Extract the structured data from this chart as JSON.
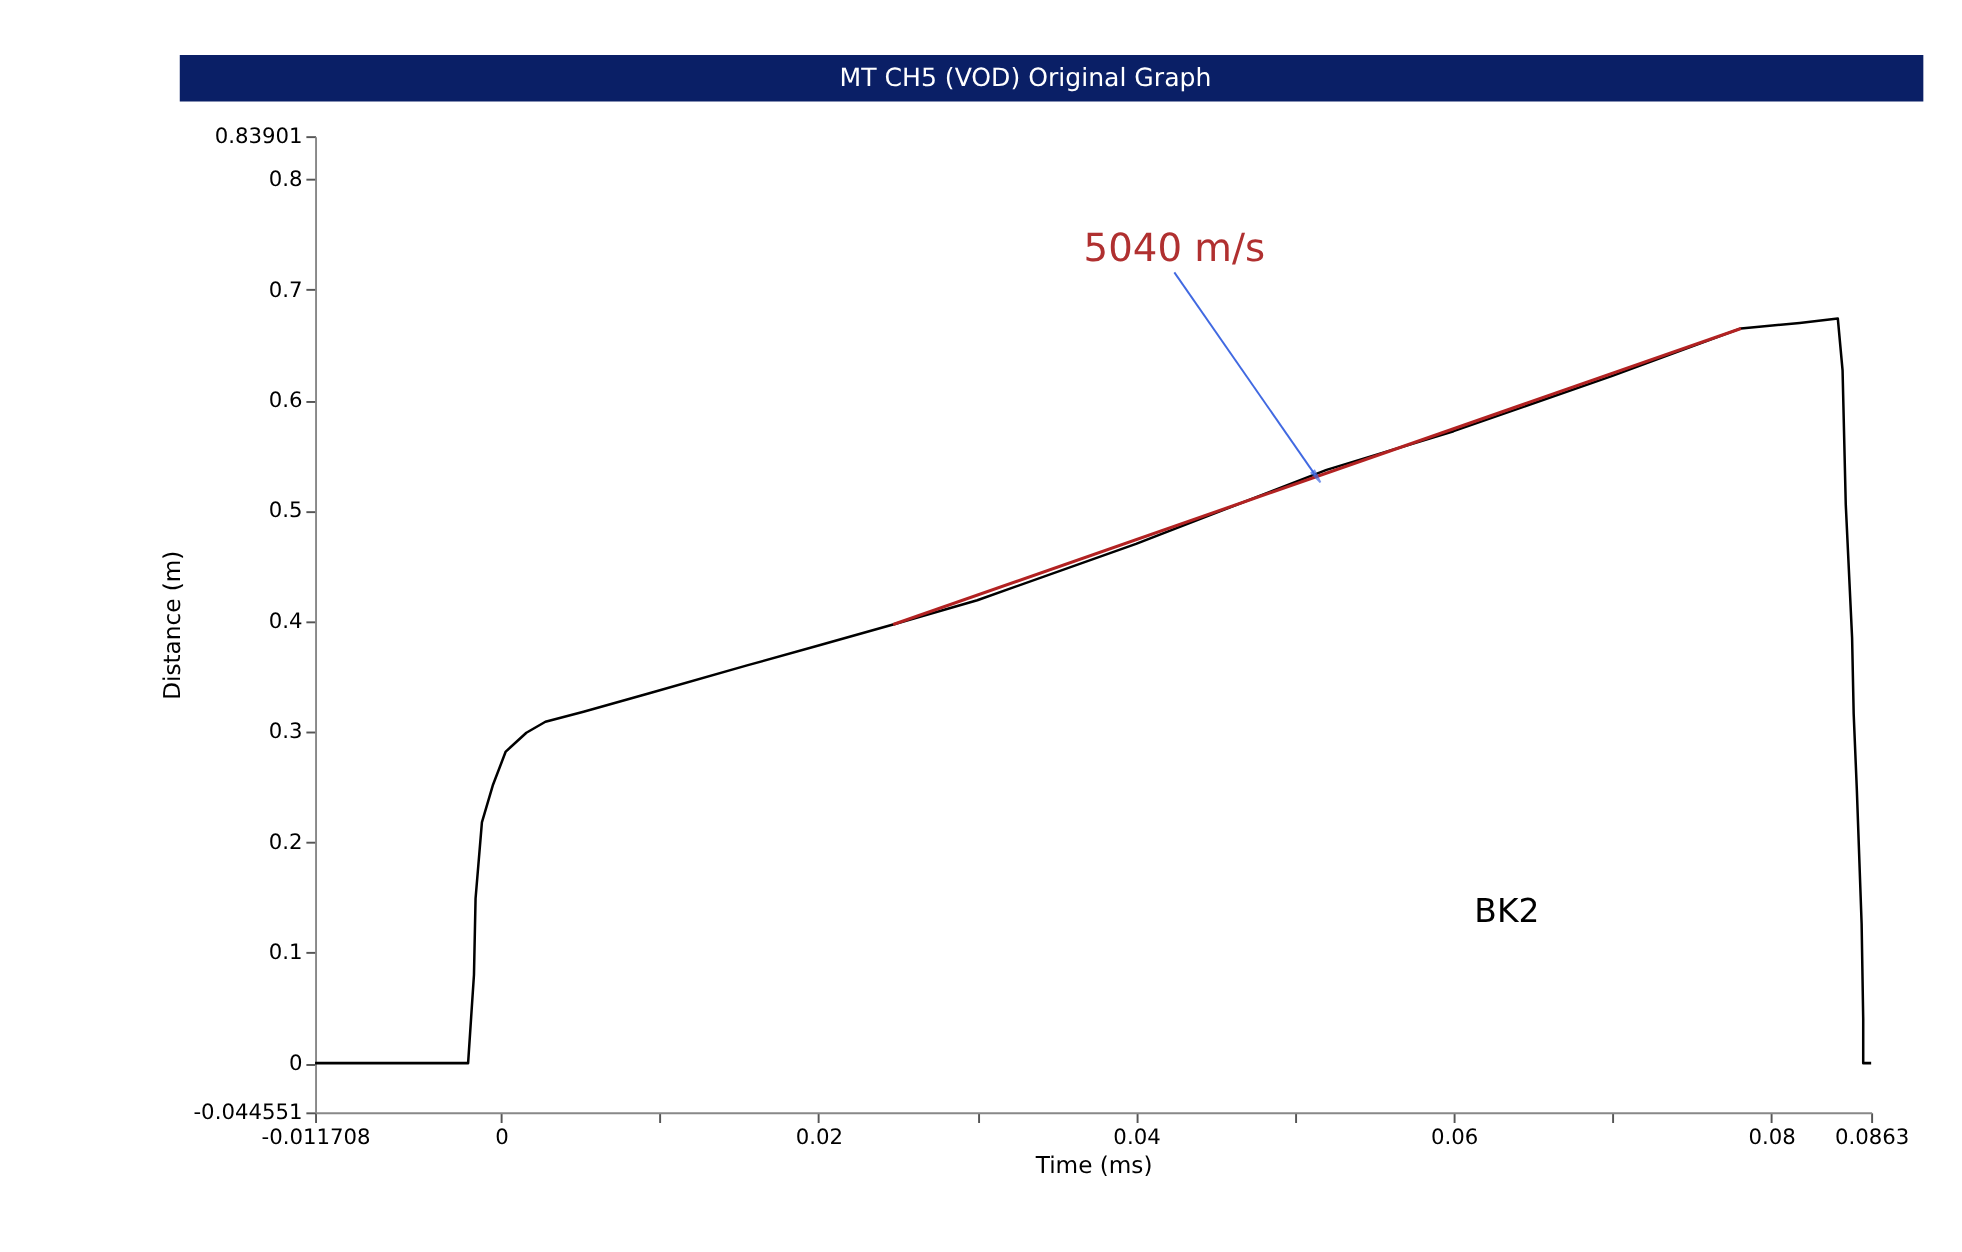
{
  "chart_data": {
    "type": "line",
    "title": "MT CH5 (VOD) Original Graph",
    "xlabel": "Time (ms)",
    "ylabel": "Distance (m)",
    "series": [
      {
        "color": "#000000",
        "x": [
          -0.011708,
          -0.00207,
          -0.0017,
          -0.0016,
          -0.0012,
          -0.0005,
          0.0003,
          0.0016,
          0.0028,
          0.0052,
          0.0094,
          0.0155,
          0.02,
          0.0247,
          0.03,
          0.04,
          0.052,
          0.06,
          0.07,
          0.0781,
          0.0818,
          0.0842,
          0.0845,
          0.0847,
          0.0851,
          0.0852,
          0.0854,
          0.0857,
          0.0858,
          0.0858,
          0.0863
        ],
        "values": [
          0,
          0,
          0.08,
          0.149,
          0.218,
          0.252,
          0.282,
          0.299,
          0.309,
          0.318,
          0.335,
          0.36,
          0.378,
          0.397,
          0.419,
          0.47,
          0.537,
          0.572,
          0.622,
          0.665,
          0.67,
          0.674,
          0.627,
          0.506,
          0.385,
          0.316,
          0.247,
          0.126,
          0.04,
          0,
          0
        ]
      },
      {
        "type": "line",
        "color": "#b22222",
        "x": [
          0.0247,
          0.0781
        ],
        "values": [
          0.397,
          0.665
        ]
      }
    ],
    "annotations": [
      {
        "text": "5040 m/s",
        "x": 0.0513,
        "y": 0.532
      },
      "BK2"
    ],
    "xlim": [
      -0.011708,
      0.0863
    ],
    "xticks": [
      -0.011708,
      0,
      {
        "value": 0.01,
        "label": null
      },
      0.02,
      {
        "value": 0.03,
        "label": null
      },
      0.04,
      {
        "value": 0.05,
        "label": null
      },
      0.06,
      {
        "value": 0.07,
        "label": null
      },
      0.08,
      0.0863
    ],
    "ylim": [
      -0.044551,
      0.83901
    ],
    "yticks": [
      -0.044551,
      0,
      0.1,
      0.2,
      0.3,
      0.4,
      0.5,
      0.6,
      0.7,
      0.8,
      0.83901
    ],
    "grid": false,
    "legend": false,
    "marker": "none",
    "line_style": "solid"
  }
}
